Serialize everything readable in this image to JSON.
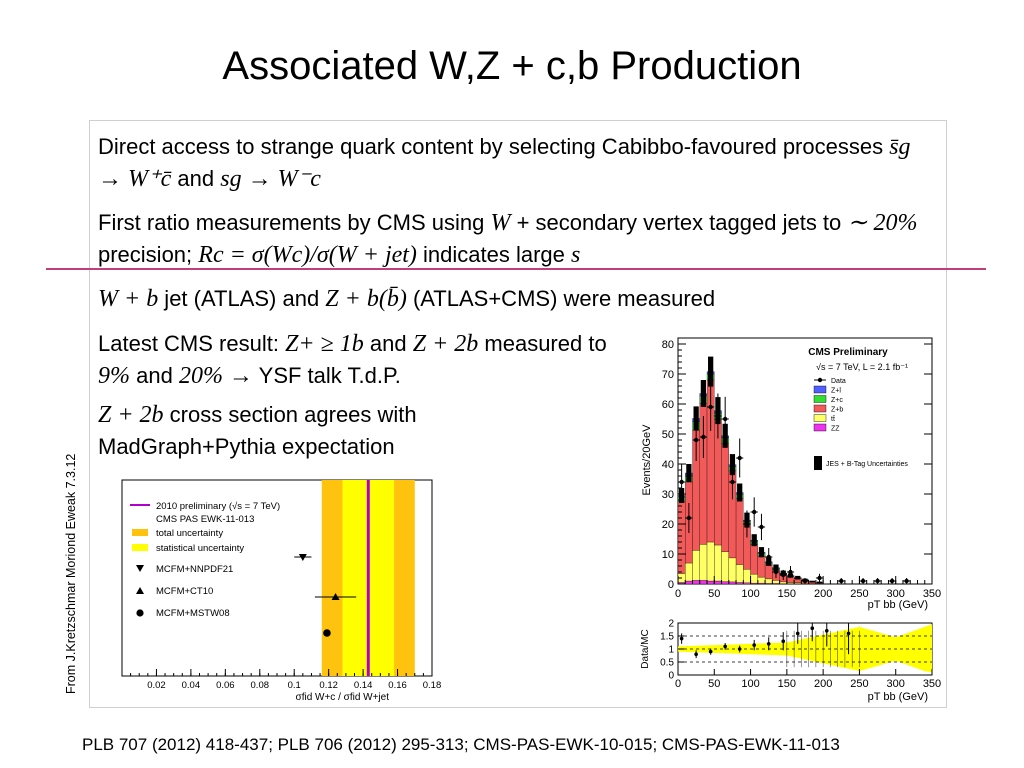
{
  "slide": {
    "title": "Associated W,Z + c,b Production",
    "paragraphs": [
      {
        "segments": [
          {
            "t": "Direct access to strange quark content by selecting Cabibbo-favoured processes "
          },
          {
            "t": "s̄g → W⁺c̄",
            "math": true
          },
          {
            "t": " and "
          },
          {
            "t": "sg → W⁻c",
            "math": true
          }
        ]
      },
      {
        "segments": [
          {
            "t": "First ratio measurements by CMS using "
          },
          {
            "t": "W",
            "math": true
          },
          {
            "t": " + secondary vertex tagged jets to "
          },
          {
            "t": "∼ 20%",
            "math": true
          },
          {
            "t": " precision; "
          },
          {
            "t": "Rc = σ(Wc)/σ(W + jet)",
            "math": true
          },
          {
            "t": " indicates large "
          },
          {
            "t": "s",
            "math": true
          }
        ]
      },
      {
        "segments": [
          {
            "t": "W + b",
            "math": true
          },
          {
            "t": " jet (ATLAS) and "
          },
          {
            "t": "Z + b(b̄)",
            "math": true
          },
          {
            "t": " (ATLAS+CMS) were measured"
          }
        ]
      },
      {
        "segments": [
          {
            "t": "Latest CMS result: "
          },
          {
            "t": "Z+ ≥ 1b",
            "math": true
          },
          {
            "t": " and "
          },
          {
            "t": "Z + 2b",
            "math": true
          },
          {
            "t": " measured to "
          },
          {
            "t": "9%",
            "math": true
          },
          {
            "t": " and "
          },
          {
            "t": "20% →",
            "math": true
          },
          {
            "t": " YSF talk T.d.P."
          }
        ]
      },
      {
        "segments": [
          {
            "t": "Z + 2b",
            "math": true
          },
          {
            "t": " cross section agrees with MadGraph+Pythia expectation"
          }
        ]
      }
    ],
    "side_note": "From J.Kretzschmar Moriond Eweak 7.3.12",
    "reference": "PLB 707 (2012) 418-437; PLB 706 (2012) 295-313; CMS-PAS-EWK-10-015; CMS-PAS-EWK-11-013",
    "divider_color": "#c0407a"
  },
  "chart_data": [
    {
      "type": "bar",
      "legend": {
        "line_label": "2010 preliminary (√s = 7 TeV)",
        "text_lines": [
          "CMS PAS EWK-11-013"
        ],
        "total_label": "total uncertainty",
        "stat_label": "statistical uncertainty",
        "markers": [
          {
            "shape": "triangle-down",
            "label": "MCFM+NNPDF21"
          },
          {
            "shape": "triangle-up",
            "label": "MCFM+CT10"
          },
          {
            "shape": "circle",
            "label": "MCFM+MSTW08"
          }
        ]
      },
      "xlabel": "σfid W+c / σfid W+jet",
      "xlim": [
        0,
        0.18
      ],
      "xticks": [
        "0.02",
        "0.04",
        "0.06",
        "0.08",
        "0.1",
        "0.12",
        "0.14",
        "0.16",
        "0.18"
      ],
      "measurement": 0.143,
      "total_band": [
        0.116,
        0.17
      ],
      "stat_band": [
        0.128,
        0.158
      ],
      "predictions": [
        {
          "name": "MCFM+NNPDF21",
          "value": 0.105,
          "err": 0.005,
          "row": 0
        },
        {
          "name": "MCFM+CT10",
          "value": 0.124,
          "err": 0.012,
          "row": 1
        },
        {
          "name": "MCFM+MSTW08",
          "value": 0.119,
          "err": 0,
          "row": 2
        }
      ],
      "colors": {
        "total": "#ffc20e",
        "stat": "#ffff00",
        "line": "#b000d0"
      }
    },
    {
      "type": "bar",
      "header": "CMS Preliminary",
      "energy_label": "√s = 7 TeV, L = 2.1 fb⁻¹",
      "ylabel": "Events/20GeV",
      "xlabel": "pT bb (GeV)",
      "ylim": [
        0,
        82
      ],
      "xlim": [
        0,
        350
      ],
      "yticks": [
        "0",
        "10",
        "20",
        "30",
        "40",
        "50",
        "60",
        "70",
        "80"
      ],
      "xticks": [
        "0",
        "50",
        "100",
        "150",
        "200",
        "250",
        "300",
        "350"
      ],
      "bin_width": 10,
      "legend": [
        {
          "label": "Data",
          "kind": "marker"
        },
        {
          "label": "Z+l",
          "color": "#5060ff"
        },
        {
          "label": "Z+c",
          "color": "#33dd33"
        },
        {
          "label": "Z+b",
          "color": "#f25a5a"
        },
        {
          "label": "tt̄",
          "color": "#ffff66"
        },
        {
          "label": "ZZ",
          "color": "#ee33ee"
        }
      ],
      "uncertainty_label": "JES + B-Tag Uncertainties",
      "stack": {
        "x": [
          0,
          10,
          20,
          30,
          40,
          50,
          60,
          70,
          80,
          90,
          100,
          110,
          120,
          130,
          140,
          150,
          160,
          170,
          180,
          190
        ],
        "zz": [
          0.5,
          1,
          1.2,
          1.2,
          1,
          1,
          0.8,
          0.7,
          0.5,
          0.4,
          0.3,
          0.3,
          0.2,
          0.2,
          0.1,
          0.1,
          0.1,
          0,
          0,
          0
        ],
        "tt": [
          3,
          6,
          10,
          12,
          13,
          12,
          10,
          8,
          6,
          4.5,
          3,
          2,
          1.5,
          1,
          0.6,
          0.4,
          0.3,
          0.2,
          0.1,
          0.1
        ],
        "zb": [
          24,
          27,
          40,
          47,
          54,
          42,
          36,
          29,
          22,
          15,
          10,
          7,
          5,
          3.5,
          2.5,
          2,
          1.4,
          1,
          0.6,
          0.3
        ],
        "zc": [
          1.5,
          2,
          3,
          2.5,
          2,
          2,
          2,
          1.5,
          1.5,
          1,
          1,
          1,
          0.5,
          0.5,
          0.3,
          0.2,
          0.2,
          0.1,
          0.1,
          0.1
        ],
        "zl": [
          0.5,
          1,
          1,
          0.8,
          0.8,
          0.8,
          0.6,
          0.6,
          0.5,
          0.4,
          0.3,
          0.3,
          0.2,
          0.2,
          0.1,
          0.1,
          0.1,
          0.1,
          0,
          0
        ]
      },
      "unc_half": [
        2.5,
        3,
        4,
        4.5,
        5,
        4.5,
        4,
        3.5,
        3,
        2.5,
        2,
        1.7,
        1.4,
        1.1,
        0.9,
        0.7,
        0.6,
        0.4,
        0.3,
        0.3
      ],
      "data": {
        "x": [
          5,
          15,
          25,
          35,
          45,
          55,
          65,
          75,
          85,
          95,
          105,
          115,
          125,
          135,
          145,
          155,
          175,
          195,
          225,
          255,
          275,
          295,
          315
        ],
        "y": [
          34,
          22,
          48,
          49,
          59,
          56,
          55,
          34,
          42,
          20,
          24,
          19,
          9,
          4,
          3,
          4,
          1,
          2,
          1,
          1,
          1,
          1,
          1
        ],
        "err": [
          6,
          5,
          7,
          7,
          8,
          7.5,
          7.4,
          5.8,
          6.5,
          4.5,
          4.9,
          4.4,
          3,
          2,
          1.7,
          2,
          1,
          1.4,
          1,
          1,
          1,
          1,
          1
        ]
      },
      "ratio": {
        "ylabel": "Data/MC",
        "ylim": [
          0,
          2
        ],
        "yticks": [
          "0",
          "0.5",
          "1",
          "1.5",
          "2"
        ],
        "x": [
          5,
          25,
          45,
          65,
          85,
          105,
          125,
          145,
          165,
          185,
          205,
          235
        ],
        "y": [
          1.4,
          0.8,
          0.9,
          1.1,
          1.0,
          1.15,
          1.2,
          1.3,
          1.6,
          1.8,
          1.7,
          1.6
        ],
        "err": [
          0.2,
          0.15,
          0.12,
          0.13,
          0.13,
          0.2,
          0.25,
          0.35,
          0.4,
          0.5,
          0.6,
          0.8
        ]
      }
    }
  ]
}
